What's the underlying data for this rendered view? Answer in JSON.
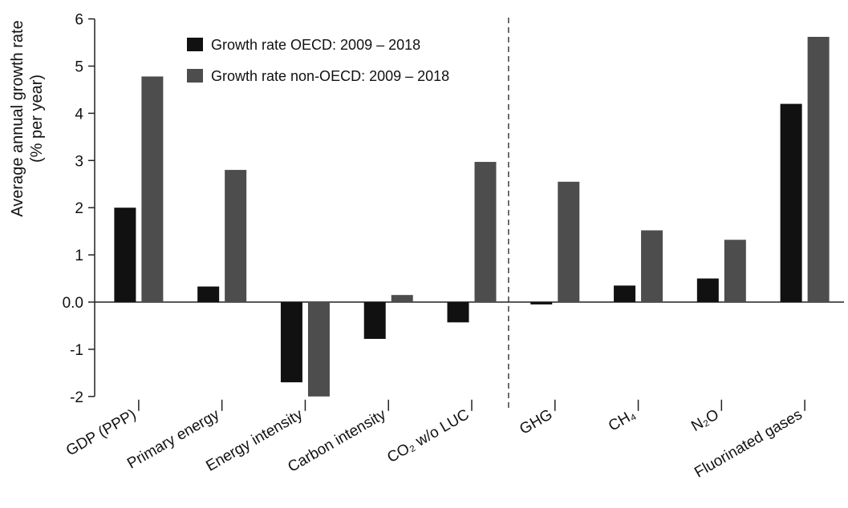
{
  "chart_data": {
    "type": "bar",
    "ylabel": "Average annual growth rate",
    "ylabel_unit": "(% per year)",
    "ylim": [
      -2,
      6
    ],
    "yticks": [
      "-2",
      "-1",
      "0.0",
      "1",
      "2",
      "3",
      "4",
      "5",
      "6"
    ],
    "categories": [
      "GDP (PPP)",
      "Primary energy",
      "Energy intensity",
      "Carbon intensity",
      "CO₂ w/o LUC",
      "GHG",
      "CH₄",
      "N₂O",
      "Fluorinated gases"
    ],
    "series": [
      {
        "name": "Growth rate OECD: 2009 – 2018",
        "color": "#111111",
        "values": [
          2.0,
          0.33,
          -1.7,
          -0.78,
          -0.43,
          -0.05,
          0.35,
          0.5,
          4.2
        ]
      },
      {
        "name": "Growth rate non-OECD: 2009 – 2018",
        "color": "#4d4d4d",
        "values": [
          4.78,
          2.8,
          -2.0,
          0.15,
          2.97,
          2.55,
          1.52,
          1.32,
          5.62
        ]
      }
    ],
    "divider_after_category": 4,
    "legend_position": "top-left",
    "grid": false
  }
}
